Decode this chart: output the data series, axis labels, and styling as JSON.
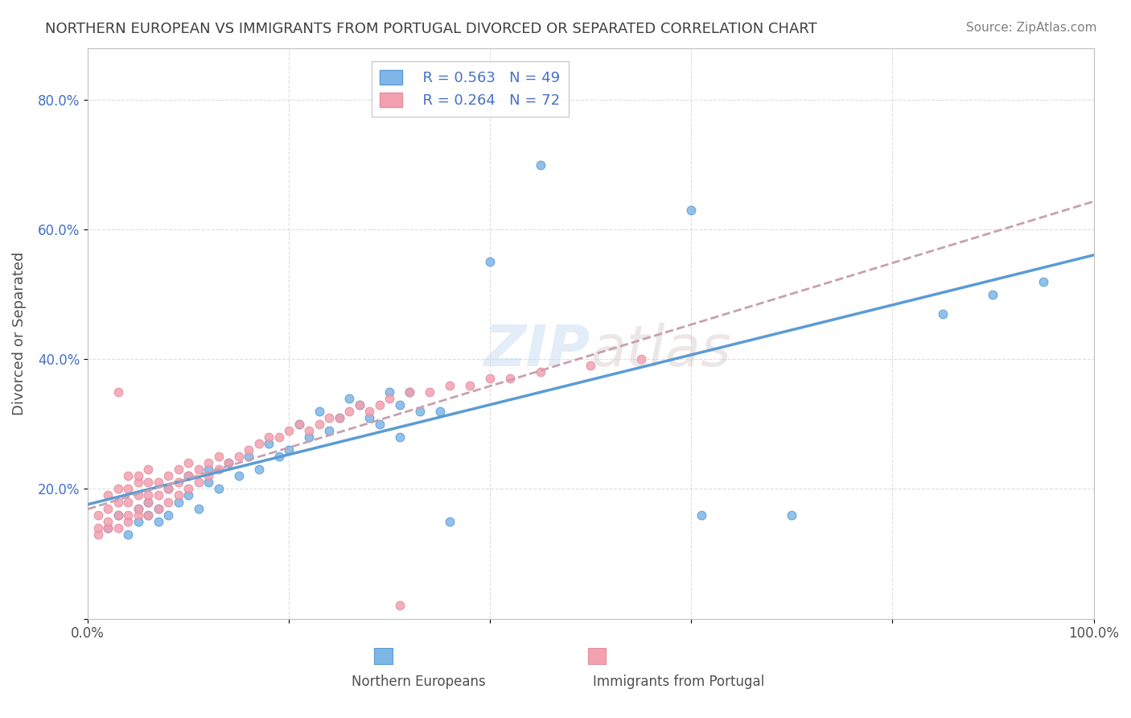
{
  "title": "NORTHERN EUROPEAN VS IMMIGRANTS FROM PORTUGAL DIVORCED OR SEPARATED CORRELATION CHART",
  "source": "Source: ZipAtlas.com",
  "ylabel": "Divorced or Separated",
  "xlabel": "",
  "xlim": [
    0.0,
    1.0
  ],
  "ylim": [
    0.0,
    0.88
  ],
  "xtick_labels": [
    "0.0%",
    "",
    "",
    "",
    "",
    "100.0%"
  ],
  "ytick_labels": [
    "",
    "20.0%",
    "40.0%",
    "60.0%",
    "80.0%"
  ],
  "legend_r1": "R = 0.563",
  "legend_n1": "N = 49",
  "legend_r2": "R = 0.264",
  "legend_n2": "N = 72",
  "color_blue": "#7EB6E8",
  "color_pink": "#F4A0B0",
  "color_line_blue": "#5B9BD5",
  "color_line_pink": "#C8A0B0",
  "title_color": "#404040",
  "blue_scatter": [
    [
      0.02,
      0.14
    ],
    [
      0.03,
      0.16
    ],
    [
      0.04,
      0.13
    ],
    [
      0.05,
      0.15
    ],
    [
      0.05,
      0.17
    ],
    [
      0.06,
      0.16
    ],
    [
      0.06,
      0.18
    ],
    [
      0.07,
      0.15
    ],
    [
      0.07,
      0.17
    ],
    [
      0.08,
      0.16
    ],
    [
      0.08,
      0.2
    ],
    [
      0.09,
      0.18
    ],
    [
      0.1,
      0.19
    ],
    [
      0.1,
      0.22
    ],
    [
      0.11,
      0.17
    ],
    [
      0.12,
      0.21
    ],
    [
      0.12,
      0.23
    ],
    [
      0.13,
      0.2
    ],
    [
      0.14,
      0.24
    ],
    [
      0.15,
      0.22
    ],
    [
      0.16,
      0.25
    ],
    [
      0.17,
      0.23
    ],
    [
      0.18,
      0.27
    ],
    [
      0.19,
      0.25
    ],
    [
      0.2,
      0.26
    ],
    [
      0.21,
      0.3
    ],
    [
      0.22,
      0.28
    ],
    [
      0.23,
      0.32
    ],
    [
      0.24,
      0.29
    ],
    [
      0.25,
      0.31
    ],
    [
      0.26,
      0.34
    ],
    [
      0.27,
      0.33
    ],
    [
      0.28,
      0.31
    ],
    [
      0.29,
      0.3
    ],
    [
      0.3,
      0.35
    ],
    [
      0.31,
      0.28
    ],
    [
      0.31,
      0.33
    ],
    [
      0.32,
      0.35
    ],
    [
      0.33,
      0.32
    ],
    [
      0.35,
      0.32
    ],
    [
      0.36,
      0.15
    ],
    [
      0.4,
      0.55
    ],
    [
      0.45,
      0.7
    ],
    [
      0.6,
      0.63
    ],
    [
      0.61,
      0.16
    ],
    [
      0.7,
      0.16
    ],
    [
      0.85,
      0.47
    ],
    [
      0.9,
      0.5
    ],
    [
      0.95,
      0.52
    ]
  ],
  "pink_scatter": [
    [
      0.01,
      0.13
    ],
    [
      0.01,
      0.14
    ],
    [
      0.01,
      0.16
    ],
    [
      0.02,
      0.14
    ],
    [
      0.02,
      0.15
    ],
    [
      0.02,
      0.17
    ],
    [
      0.02,
      0.19
    ],
    [
      0.03,
      0.14
    ],
    [
      0.03,
      0.16
    ],
    [
      0.03,
      0.18
    ],
    [
      0.03,
      0.2
    ],
    [
      0.03,
      0.35
    ],
    [
      0.04,
      0.15
    ],
    [
      0.04,
      0.16
    ],
    [
      0.04,
      0.18
    ],
    [
      0.04,
      0.2
    ],
    [
      0.04,
      0.22
    ],
    [
      0.05,
      0.16
    ],
    [
      0.05,
      0.17
    ],
    [
      0.05,
      0.19
    ],
    [
      0.05,
      0.21
    ],
    [
      0.05,
      0.22
    ],
    [
      0.06,
      0.16
    ],
    [
      0.06,
      0.18
    ],
    [
      0.06,
      0.19
    ],
    [
      0.06,
      0.21
    ],
    [
      0.06,
      0.23
    ],
    [
      0.07,
      0.17
    ],
    [
      0.07,
      0.19
    ],
    [
      0.07,
      0.21
    ],
    [
      0.08,
      0.18
    ],
    [
      0.08,
      0.2
    ],
    [
      0.08,
      0.22
    ],
    [
      0.09,
      0.19
    ],
    [
      0.09,
      0.21
    ],
    [
      0.09,
      0.23
    ],
    [
      0.1,
      0.2
    ],
    [
      0.1,
      0.22
    ],
    [
      0.1,
      0.24
    ],
    [
      0.11,
      0.21
    ],
    [
      0.11,
      0.23
    ],
    [
      0.12,
      0.22
    ],
    [
      0.12,
      0.24
    ],
    [
      0.13,
      0.23
    ],
    [
      0.13,
      0.25
    ],
    [
      0.14,
      0.24
    ],
    [
      0.15,
      0.25
    ],
    [
      0.16,
      0.26
    ],
    [
      0.17,
      0.27
    ],
    [
      0.18,
      0.28
    ],
    [
      0.19,
      0.28
    ],
    [
      0.2,
      0.29
    ],
    [
      0.21,
      0.3
    ],
    [
      0.22,
      0.29
    ],
    [
      0.23,
      0.3
    ],
    [
      0.24,
      0.31
    ],
    [
      0.25,
      0.31
    ],
    [
      0.26,
      0.32
    ],
    [
      0.27,
      0.33
    ],
    [
      0.28,
      0.32
    ],
    [
      0.29,
      0.33
    ],
    [
      0.3,
      0.34
    ],
    [
      0.31,
      0.02
    ],
    [
      0.32,
      0.35
    ],
    [
      0.34,
      0.35
    ],
    [
      0.36,
      0.36
    ],
    [
      0.38,
      0.36
    ],
    [
      0.4,
      0.37
    ],
    [
      0.42,
      0.37
    ],
    [
      0.45,
      0.38
    ],
    [
      0.5,
      0.39
    ],
    [
      0.55,
      0.4
    ]
  ]
}
